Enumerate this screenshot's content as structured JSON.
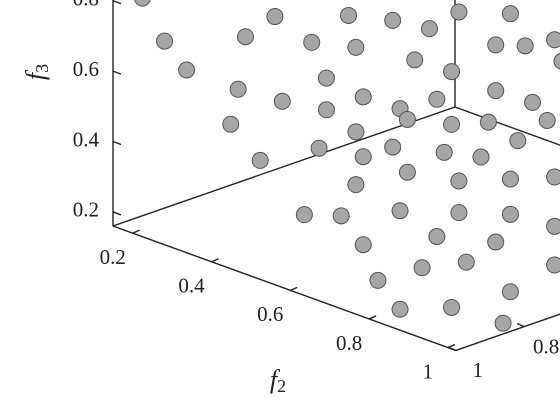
{
  "chart_data": {
    "type": "scatter3d",
    "xlabel": null,
    "ylabel": {
      "text": "f",
      "subscript": "2"
    },
    "zlabel": {
      "text": "f",
      "subscript": "3"
    },
    "color": "#a6a6a6",
    "xlim": [
      0,
      1
    ],
    "ylim": [
      0.15,
      1.02
    ],
    "zlim": [
      0.16,
      0.8
    ],
    "xticks": [
      1,
      0.8
    ],
    "yticks": [
      0.2,
      0.4,
      0.6,
      0.8,
      1
    ],
    "zticks": [
      0.2,
      0.4,
      0.6,
      0.8
    ],
    "x": [
      0.96,
      0.78,
      0.68,
      0.62,
      0.57,
      0.53,
      0.46,
      0.93,
      0.82,
      0.73,
      0.67,
      0.59,
      0.54,
      0.48,
      0.44,
      0.4,
      0.9,
      0.71,
      0.83,
      0.77,
      0.71,
      0.66,
      0.61,
      0.56,
      0.48,
      0.43,
      0.39,
      0.84,
      0.67,
      0.6,
      0.54,
      0.49,
      0.41,
      0.8,
      0.72,
      0.66,
      0.62,
      0.55,
      0.5,
      0.45,
      0.67,
      0.6,
      0.53,
      0.46,
      0.4,
      0.74,
      0.69,
      0.61,
      0.53,
      0.46,
      0.66,
      0.56,
      0.48,
      0.4,
      0.58,
      0.52,
      0.4,
      0.64,
      0.46,
      0.61,
      0.54,
      0.47
    ],
    "y": [
      0.19,
      0.37,
      0.47,
      0.53,
      0.58,
      0.62,
      0.69,
      0.22,
      0.33,
      0.42,
      0.48,
      0.56,
      0.61,
      0.67,
      0.71,
      0.75,
      0.25,
      0.44,
      0.32,
      0.38,
      0.44,
      0.49,
      0.54,
      0.59,
      0.67,
      0.72,
      0.76,
      0.31,
      0.48,
      0.55,
      0.61,
      0.66,
      0.74,
      0.35,
      0.43,
      0.49,
      0.53,
      0.6,
      0.65,
      0.7,
      0.48,
      0.55,
      0.62,
      0.69,
      0.75,
      0.41,
      0.46,
      0.54,
      0.62,
      0.69,
      0.49,
      0.59,
      0.67,
      0.75,
      0.57,
      0.63,
      0.75,
      0.51,
      0.69,
      0.54,
      0.61,
      0.68
    ],
    "z": [
      0.81,
      0.77,
      0.78,
      0.77,
      0.75,
      0.8,
      0.8,
      0.69,
      0.71,
      0.7,
      0.69,
      0.66,
      0.63,
      0.71,
      0.71,
      0.73,
      0.61,
      0.6,
      0.56,
      0.53,
      0.51,
      0.55,
      0.52,
      0.55,
      0.58,
      0.55,
      0.67,
      0.46,
      0.45,
      0.49,
      0.48,
      0.49,
      0.5,
      0.36,
      0.4,
      0.38,
      0.41,
      0.4,
      0.39,
      0.44,
      0.3,
      0.34,
      0.32,
      0.33,
      0.34,
      0.21,
      0.21,
      0.23,
      0.23,
      0.23,
      0.13,
      0.16,
      0.15,
      0.2,
      0.07,
      0.09,
      0.09,
      0.03,
      0.01,
      -0.05,
      -0.04,
      -0.08
    ]
  }
}
